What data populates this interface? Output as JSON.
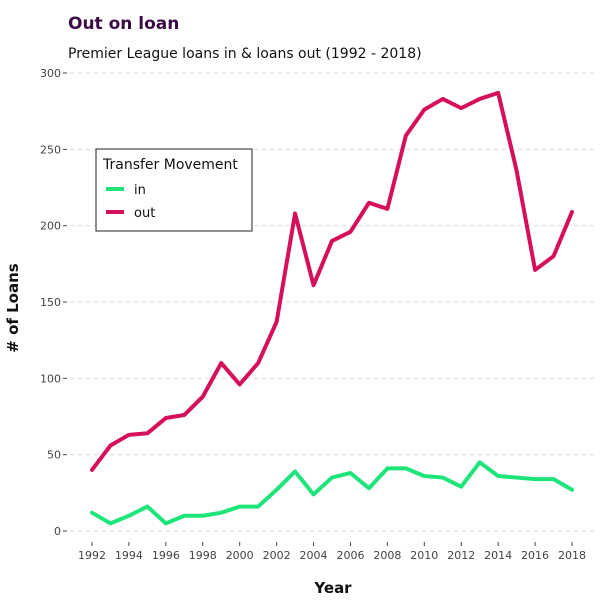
{
  "title": "Out on loan",
  "subtitle": "Premier League loans in & loans out (1992 - 2018)",
  "chart_data": {
    "type": "line",
    "title": "Out on loan",
    "subtitle": "Premier League loans in & loans out (1992 - 2018)",
    "xlabel": "Year",
    "ylabel": "# of Loans",
    "x": [
      1992,
      1993,
      1994,
      1995,
      1996,
      1997,
      1998,
      1999,
      2000,
      2001,
      2002,
      2003,
      2004,
      2005,
      2006,
      2007,
      2008,
      2009,
      2010,
      2011,
      2012,
      2013,
      2014,
      2015,
      2016,
      2017,
      2018
    ],
    "x_ticks": [
      "1992",
      "1994",
      "1996",
      "1998",
      "2000",
      "2002",
      "2004",
      "2006",
      "2008",
      "2010",
      "2012",
      "2014",
      "2016",
      "2018"
    ],
    "y_ticks": [
      "0",
      "50",
      "100",
      "150",
      "200",
      "250",
      "300"
    ],
    "xlim": [
      1991.2,
      2018.8
    ],
    "ylim": [
      0,
      300
    ],
    "grid": "horizontal dashed",
    "legend": {
      "title": "Transfer Movement",
      "placement": "top-left"
    },
    "series": [
      {
        "name": "in",
        "color": "#1de57a",
        "values": [
          12,
          5,
          10,
          16,
          5,
          10,
          10,
          12,
          16,
          16,
          27,
          39,
          24,
          35,
          38,
          28,
          41,
          41,
          36,
          35,
          29,
          45,
          36,
          35,
          34,
          34,
          27
        ]
      },
      {
        "name": "out",
        "color": "#d60f5a",
        "values": [
          40,
          56,
          63,
          64,
          74,
          76,
          88,
          110,
          96,
          110,
          137,
          208,
          161,
          190,
          196,
          215,
          211,
          259,
          276,
          283,
          277,
          283,
          287,
          236,
          171,
          180,
          209
        ]
      }
    ]
  }
}
